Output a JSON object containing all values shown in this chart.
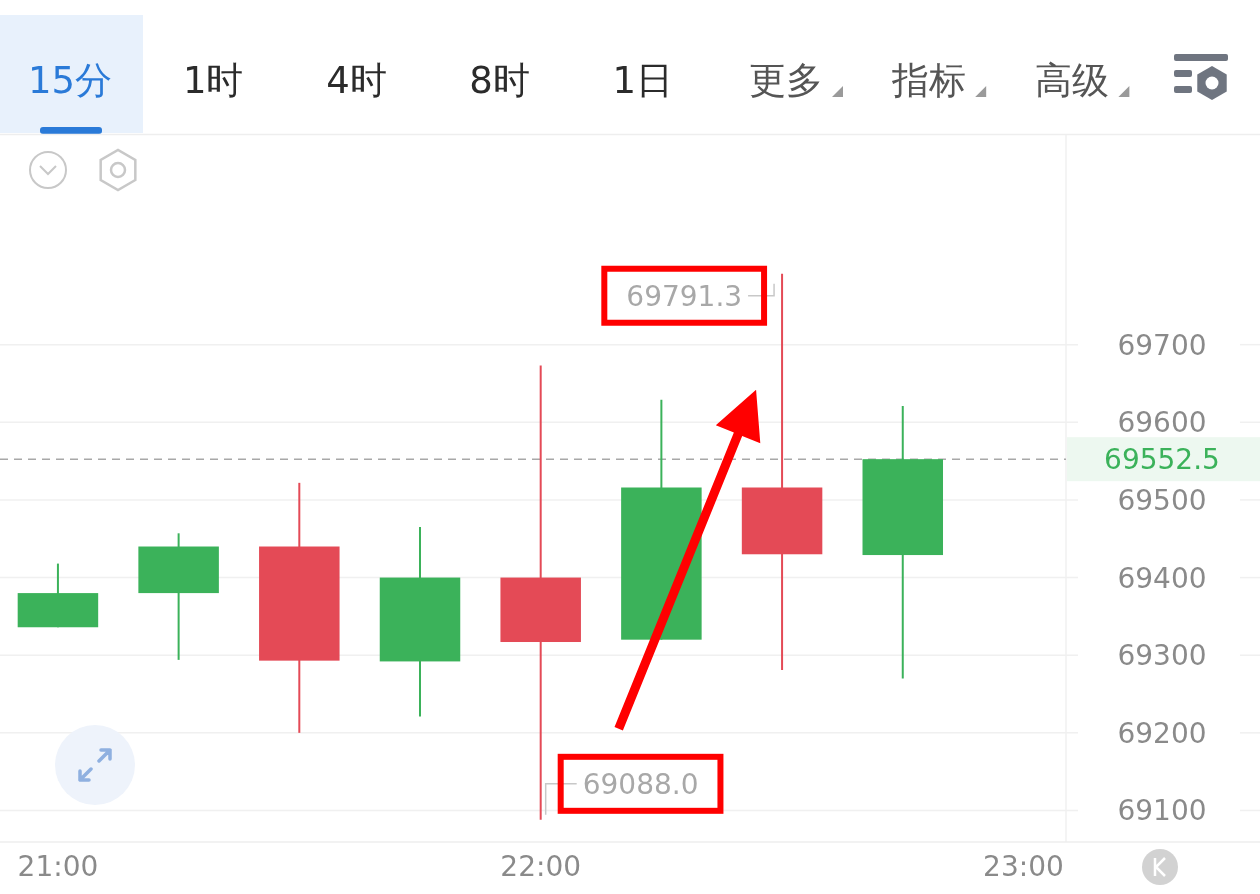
{
  "chart_data": {
    "type": "candlestick",
    "x": [
      21,
      21.25,
      21.5,
      21.75,
      22,
      22.25,
      22.5,
      22.75
    ],
    "ohlc": [
      [
        69336,
        69418,
        69336,
        69380
      ],
      [
        69380,
        69457,
        69294,
        69440
      ],
      [
        69440,
        69522,
        69200,
        69293
      ],
      [
        69292,
        69465,
        69221,
        69400
      ],
      [
        69400,
        69673,
        69088.0,
        69317
      ],
      [
        69320,
        69629,
        69320,
        69516
      ],
      [
        69516,
        69791.3,
        69281,
        69430
      ],
      [
        69429,
        69621,
        69270,
        69552.5
      ]
    ],
    "colors": [
      "#3bb25a",
      "#3bb25a",
      "#e44a56",
      "#3bb25a",
      "#e44a56",
      "#3bb25a",
      "#e44a56",
      "#3bb25a"
    ],
    "xlim": [
      20.88,
      23.49
    ],
    "xticks": [
      {
        "value": 21,
        "label": "21:00"
      },
      {
        "value": 22,
        "label": "22:00"
      },
      {
        "value": 23,
        "label": "23:00"
      }
    ],
    "ylim": [
      69062,
      69970
    ],
    "yticks": [
      69100,
      69200,
      69300,
      69400,
      69500,
      69600,
      69700
    ],
    "grid": "y",
    "ref_lines": [
      {
        "axis": "y",
        "value": 69552.5,
        "label": "69552.5",
        "color": "#a8a8a8",
        "line_style": "dashed"
      }
    ],
    "annotations": [
      "15分",
      "1时",
      "4时",
      "8时",
      "1日",
      "更多",
      "指标",
      "高级",
      {
        "text": "69791.3",
        "x": 22.5,
        "y": 69791.3
      },
      {
        "text": "69088.0",
        "x": 22,
        "y": 69088.0
      }
    ]
  }
}
